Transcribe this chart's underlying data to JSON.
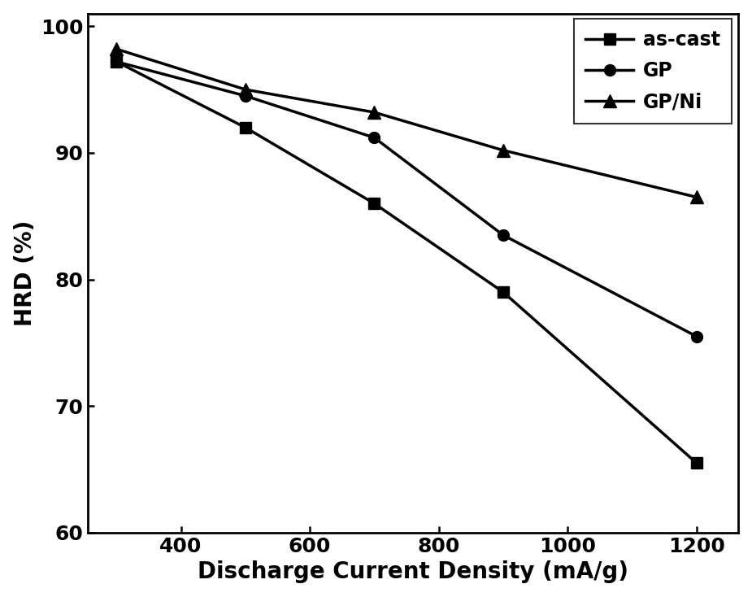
{
  "x": [
    300,
    500,
    700,
    900,
    1200
  ],
  "as_cast": [
    97.2,
    92.0,
    86.0,
    79.0,
    65.5
  ],
  "gp": [
    97.2,
    94.5,
    91.2,
    83.5,
    75.5
  ],
  "gpni": [
    98.2,
    95.0,
    93.2,
    90.2,
    86.5
  ],
  "xlabel": "Discharge Current Density (mA/g)",
  "ylabel": "HRD (%)",
  "xlim": [
    255,
    1265
  ],
  "ylim": [
    60,
    101
  ],
  "yticks": [
    60,
    70,
    80,
    90,
    100
  ],
  "xticks": [
    400,
    600,
    800,
    1000,
    1200
  ],
  "line_color": "#000000",
  "line_width": 2.5,
  "marker_size": 10,
  "legend_labels": [
    "as-cast",
    "GP",
    "GP/Ni"
  ],
  "label_fontsize": 20,
  "tick_fontsize": 18,
  "legend_fontsize": 17
}
